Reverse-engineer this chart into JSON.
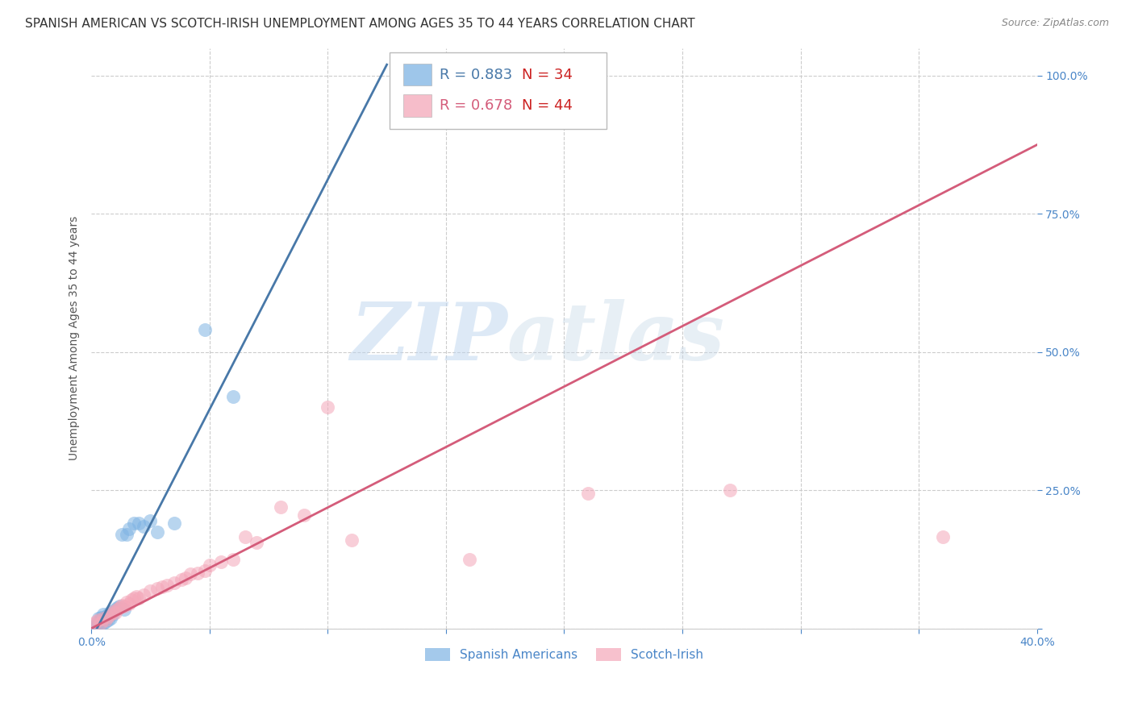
{
  "title": "SPANISH AMERICAN VS SCOTCH-IRISH UNEMPLOYMENT AMONG AGES 35 TO 44 YEARS CORRELATION CHART",
  "source": "Source: ZipAtlas.com",
  "ylabel": "Unemployment Among Ages 35 to 44 years",
  "xlim": [
    0.0,
    0.4
  ],
  "ylim": [
    0.0,
    1.05
  ],
  "xtick_positions": [
    0.0,
    0.05,
    0.1,
    0.15,
    0.2,
    0.25,
    0.3,
    0.35,
    0.4
  ],
  "xtick_labels": [
    "0.0%",
    "",
    "",
    "",
    "",
    "",
    "",
    "",
    "40.0%"
  ],
  "ytick_positions": [
    0.0,
    0.25,
    0.5,
    0.75,
    1.0
  ],
  "ytick_labels": [
    "",
    "25.0%",
    "50.0%",
    "75.0%",
    "100.0%"
  ],
  "blue_color": "#7eb3e3",
  "pink_color": "#f4a7b9",
  "blue_line_color": "#4878a8",
  "pink_line_color": "#d45c7a",
  "tick_color": "#4a86c8",
  "grid_color": "#cccccc",
  "background_color": "#ffffff",
  "blue_points_x": [
    0.001,
    0.002,
    0.002,
    0.003,
    0.003,
    0.003,
    0.004,
    0.004,
    0.004,
    0.005,
    0.005,
    0.005,
    0.006,
    0.006,
    0.007,
    0.007,
    0.008,
    0.008,
    0.009,
    0.01,
    0.011,
    0.012,
    0.013,
    0.014,
    0.015,
    0.016,
    0.018,
    0.02,
    0.022,
    0.025,
    0.028,
    0.035,
    0.048,
    0.06
  ],
  "blue_points_y": [
    0.003,
    0.005,
    0.008,
    0.01,
    0.012,
    0.018,
    0.008,
    0.015,
    0.02,
    0.01,
    0.018,
    0.025,
    0.012,
    0.022,
    0.015,
    0.025,
    0.018,
    0.03,
    0.025,
    0.035,
    0.038,
    0.04,
    0.17,
    0.035,
    0.17,
    0.18,
    0.19,
    0.19,
    0.185,
    0.195,
    0.175,
    0.19,
    0.54,
    0.42
  ],
  "pink_points_x": [
    0.001,
    0.002,
    0.003,
    0.004,
    0.005,
    0.006,
    0.007,
    0.008,
    0.009,
    0.01,
    0.011,
    0.012,
    0.013,
    0.014,
    0.015,
    0.016,
    0.017,
    0.018,
    0.019,
    0.02,
    0.022,
    0.025,
    0.028,
    0.03,
    0.032,
    0.035,
    0.038,
    0.04,
    0.042,
    0.045,
    0.048,
    0.05,
    0.055,
    0.06,
    0.065,
    0.07,
    0.08,
    0.09,
    0.1,
    0.11,
    0.16,
    0.21,
    0.27,
    0.36
  ],
  "pink_points_y": [
    0.008,
    0.012,
    0.015,
    0.01,
    0.018,
    0.015,
    0.022,
    0.025,
    0.03,
    0.028,
    0.035,
    0.038,
    0.042,
    0.04,
    0.048,
    0.045,
    0.052,
    0.055,
    0.058,
    0.055,
    0.06,
    0.068,
    0.072,
    0.075,
    0.078,
    0.082,
    0.088,
    0.092,
    0.098,
    0.1,
    0.105,
    0.115,
    0.12,
    0.125,
    0.165,
    0.155,
    0.22,
    0.205,
    0.4,
    0.16,
    0.125,
    0.245,
    0.25,
    0.165
  ],
  "blue_line_x": [
    0.0,
    0.125
  ],
  "blue_line_y": [
    -0.02,
    1.02
  ],
  "pink_line_x": [
    0.0,
    0.4
  ],
  "pink_line_y": [
    0.0,
    0.875
  ],
  "watermark_zip": "ZIP",
  "watermark_atlas": "atlas",
  "title_fontsize": 11,
  "axis_label_fontsize": 10,
  "tick_fontsize": 10,
  "legend_fontsize": 13,
  "source_fontsize": 9
}
